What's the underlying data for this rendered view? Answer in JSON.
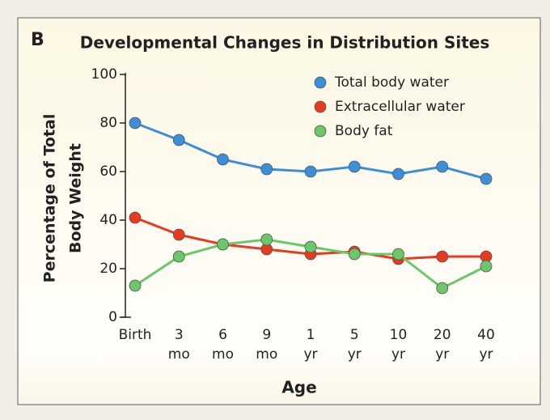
{
  "panel_label": "B",
  "chart_data": {
    "type": "line",
    "title": "Developmental Changes in Distribution Sites",
    "x_label": "Age",
    "y_label": [
      "Percentage of Total",
      "Body Weight"
    ],
    "categories": [
      "Birth",
      "3 mo",
      "6 mo",
      "9 mo",
      "1 yr",
      "5 yr",
      "10 yr",
      "20 yr",
      "40 yr"
    ],
    "series": [
      {
        "name": "Total body water",
        "color": "#3b8fd8",
        "values": [
          80,
          73,
          65,
          61,
          60,
          62,
          59,
          62,
          57
        ]
      },
      {
        "name": "Extracellular water",
        "color": "#e83a1f",
        "values": [
          41,
          34,
          30,
          28,
          26,
          27,
          24,
          25,
          25
        ]
      },
      {
        "name": "Body fat",
        "color": "#6cc76a",
        "values": [
          13,
          25,
          30,
          32,
          29,
          26,
          26,
          12,
          21
        ]
      }
    ],
    "ylim": [
      0,
      100
    ],
    "yticks": [
      0,
      20,
      40,
      60,
      80,
      100
    ],
    "legend": "upper right",
    "grid": false
  }
}
